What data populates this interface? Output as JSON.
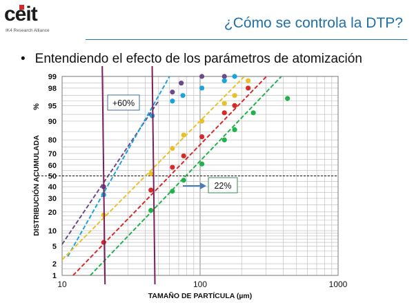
{
  "header": {
    "logo_text": "ceit",
    "logo_subtext": "IK4 Research Alliance",
    "title": "¿Cómo se controla la DTP?"
  },
  "bullet": {
    "marker": "•",
    "text": "Entendiendo el efecto de los parámetros de atomización"
  },
  "chart_data": {
    "type": "scatter",
    "xlabel": "TAMAÑO DE PARTÍCULA (µm)",
    "ylabel": "DISTRIBUCIÓN ACUMULADA",
    "ylabel_unit": "%",
    "x_scale": "log",
    "y_scale": "probability",
    "xlim": [
      10,
      1000
    ],
    "ylim": [
      1,
      99
    ],
    "x_ticks": [
      "10",
      "100",
      "1000"
    ],
    "y_ticks": [
      "1",
      "2",
      "5",
      "10",
      "20",
      "30",
      "40",
      "50",
      "60",
      "70",
      "80",
      "90",
      "95",
      "98",
      "99"
    ],
    "grid": true,
    "reference_line_y": 50,
    "annotations": [
      {
        "text": "+60%"
      },
      {
        "text": "22%"
      }
    ],
    "vertical_lines_x": [
      20,
      46
    ],
    "series": [
      {
        "color": "#6b4a8a",
        "fit": [
          [
            10,
            5.5
          ],
          [
            50,
            96
          ]
        ],
        "points": [
          [
            20,
            40
          ],
          [
            63,
            97.5
          ],
          [
            73,
            98.5
          ],
          [
            103,
            99
          ],
          [
            150,
            99
          ]
        ]
      },
      {
        "color": "#1aa3dc",
        "fit": [
          [
            11,
            3
          ],
          [
            75,
            99.8
          ]
        ],
        "points": [
          [
            20,
            33
          ],
          [
            45,
            92
          ],
          [
            63,
            96
          ],
          [
            75,
            97
          ],
          [
            103,
            98
          ],
          [
            150,
            98.7
          ],
          [
            178,
            99
          ]
        ]
      },
      {
        "color": "#e8c12a",
        "fit": [
          [
            10,
            2.5
          ],
          [
            250,
            99.5
          ]
        ],
        "points": [
          [
            20,
            18
          ],
          [
            44,
            52
          ],
          [
            63,
            74
          ],
          [
            76,
            83
          ],
          [
            103,
            90
          ],
          [
            150,
            95.5
          ],
          [
            178,
            97
          ],
          [
            223,
            98.7
          ]
        ]
      },
      {
        "color": "#d62a2a",
        "fit": [
          [
            12,
            1
          ],
          [
            360,
            99.5
          ]
        ],
        "points": [
          [
            20,
            6
          ],
          [
            44,
            37
          ],
          [
            63,
            58
          ],
          [
            76,
            68
          ],
          [
            103,
            82
          ],
          [
            150,
            93
          ],
          [
            178,
            95
          ],
          [
            223,
            98
          ]
        ]
      },
      {
        "color": "#22b24c",
        "fit": [
          [
            16,
            1
          ],
          [
            460,
            99.5
          ]
        ],
        "points": [
          [
            44,
            21
          ],
          [
            63,
            36
          ],
          [
            76,
            46
          ],
          [
            103,
            61
          ],
          [
            150,
            80
          ],
          [
            178,
            86
          ],
          [
            243,
            93
          ],
          [
            430,
            96.5
          ]
        ]
      }
    ]
  }
}
